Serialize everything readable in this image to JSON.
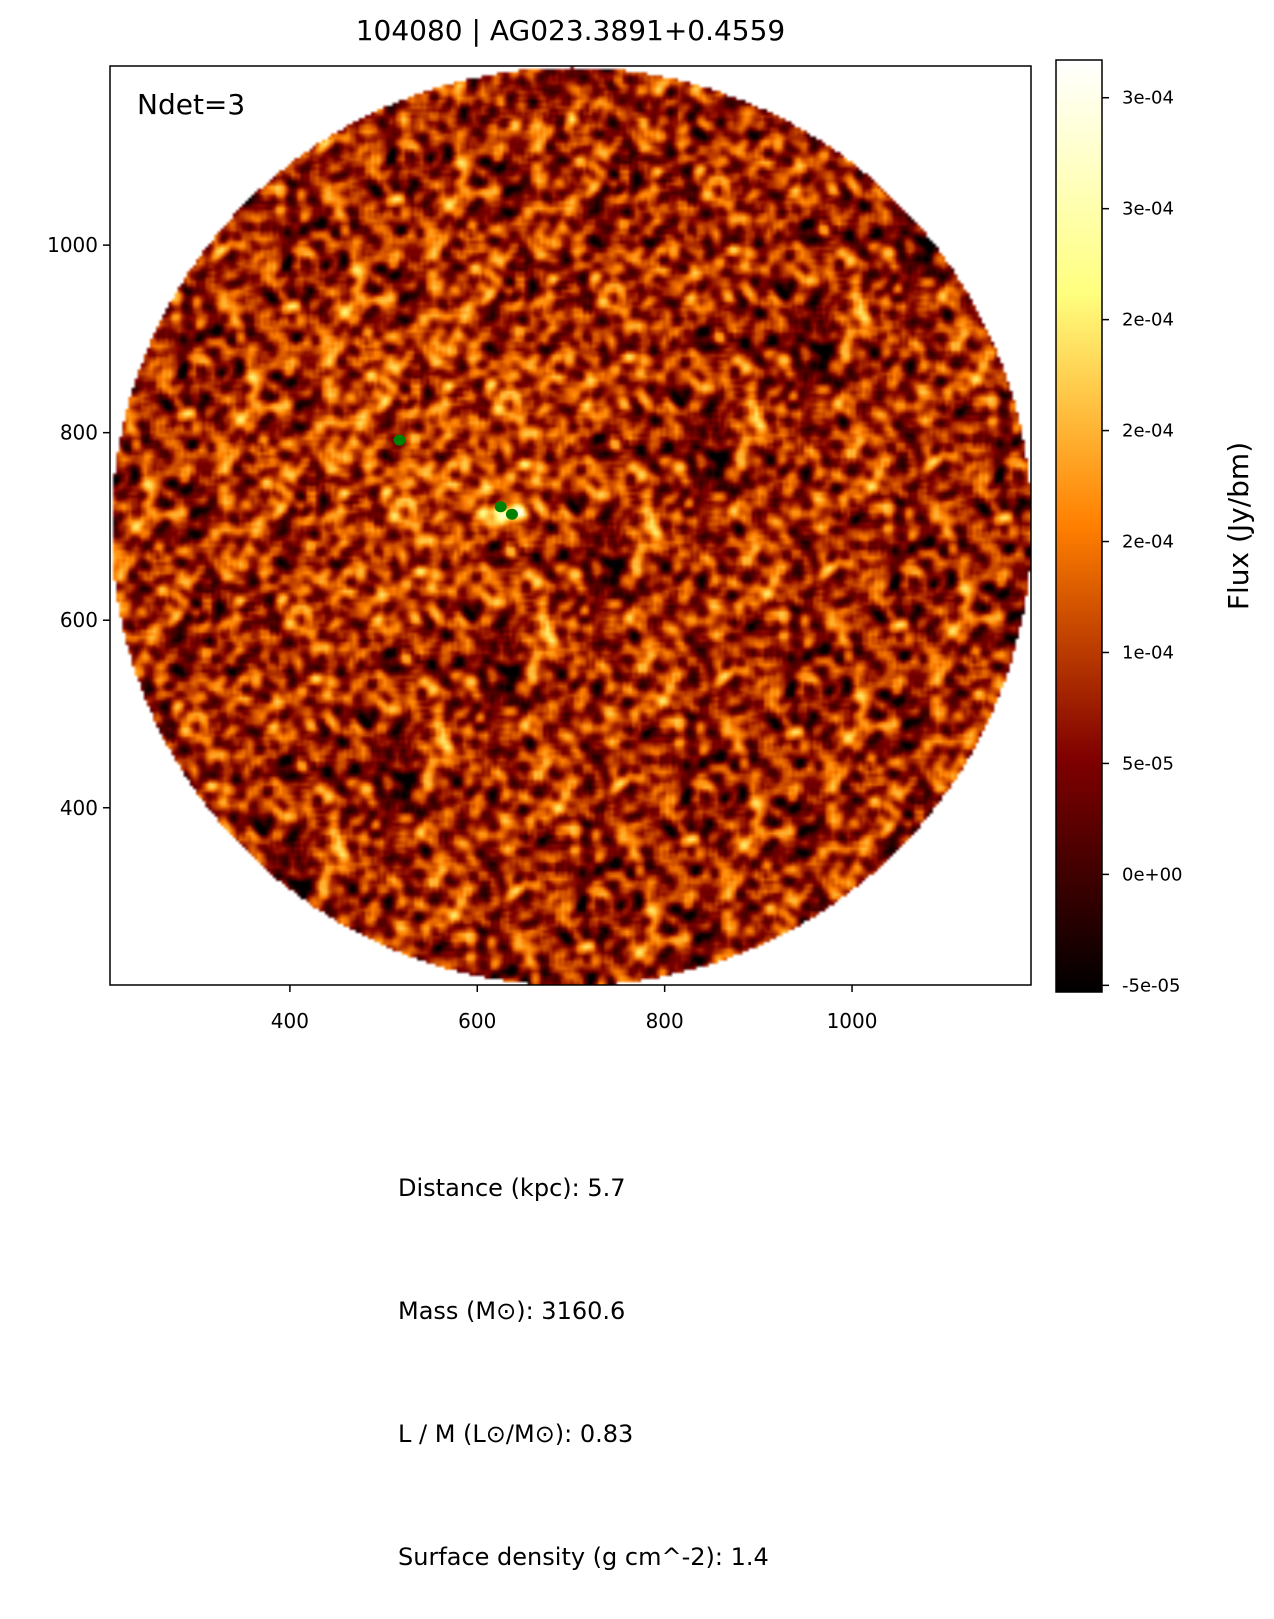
{
  "chart_data": {
    "type": "heatmap",
    "title": "104080 | AG023.3891+0.4559",
    "annotation": "Ndet=3",
    "xlim": [
      208,
      1191
    ],
    "ylim": [
      211,
      1191
    ],
    "xticks": [
      400,
      600,
      800,
      1000
    ],
    "xtick_labels": [
      "400",
      "600",
      "800",
      "1000"
    ],
    "yticks": [
      400,
      600,
      800,
      1000
    ],
    "ytick_labels": [
      "400",
      "600",
      "800",
      "1000"
    ],
    "grid": false,
    "image_footprint": "circular",
    "colormap": "afmhot",
    "colorbar": {
      "label": "Flux (Jy/bm)",
      "vmin": -5.3e-05,
      "vmax": 0.000367,
      "ticks": [
        -5e-05,
        0,
        5e-05,
        0.0001,
        0.00015,
        0.0002,
        0.00025,
        0.0003,
        0.00035
      ],
      "tick_labels": [
        "-5e-05",
        "0e+00",
        "5e-05",
        "1e-04",
        "2e-04",
        "2e-04",
        "2e-04",
        "3e-04",
        "3e-04"
      ]
    },
    "detections": {
      "color": "#008000",
      "points": [
        {
          "x": 517,
          "y": 792
        },
        {
          "x": 625,
          "y": 721
        },
        {
          "x": 637,
          "y": 713
        }
      ]
    }
  },
  "stats": [
    "Distance (kpc): 5.7",
    "Mass (M⊙): 3160.6",
    "L / M (L⊙/M⊙): 0.83",
    "Surface density (g cm^-2): 1.4"
  ]
}
